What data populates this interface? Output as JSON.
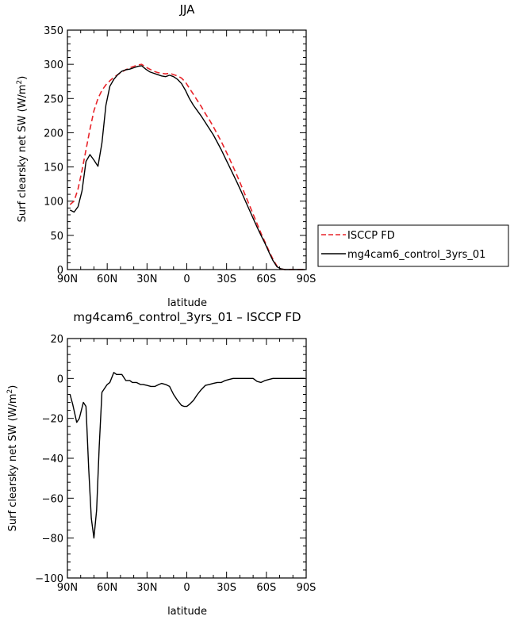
{
  "chart_data": [
    {
      "type": "line",
      "title": "JJA",
      "xlabel": "latitude",
      "ylabel": "Surf clearsky net SW (W/m",
      "ylabel_sup": "2",
      "ylabel_tail": ")",
      "xlim": [
        90,
        -90
      ],
      "ylim": [
        0,
        350
      ],
      "x_ticks": [
        90,
        60,
        30,
        0,
        -30,
        -60,
        -90
      ],
      "x_tick_labels": [
        "90N",
        "60N",
        "30N",
        "0",
        "30S",
        "60S",
        "90S"
      ],
      "y_ticks": [
        0,
        50,
        100,
        150,
        200,
        250,
        300,
        350
      ],
      "y_tick_labels": [
        "0",
        "50",
        "100",
        "150",
        "200",
        "250",
        "300",
        "350"
      ],
      "grid": false,
      "legend": "right",
      "series": [
        {
          "name": "ISCCP FD",
          "color": "#e8242a",
          "dash": "dashed",
          "x": [
            88,
            85,
            82,
            79,
            76,
            73,
            70,
            67,
            64,
            61,
            58,
            55,
            52,
            49,
            46,
            43,
            40,
            37,
            34,
            31,
            28,
            25,
            22,
            19,
            16,
            13,
            10,
            7,
            4,
            1,
            -2,
            -5,
            -8,
            -11,
            -14,
            -17,
            -20,
            -23,
            -26,
            -29,
            -32,
            -35,
            -38,
            -41,
            -44,
            -47,
            -50,
            -53,
            -56,
            -59,
            -62,
            -65,
            -68,
            -71,
            -74,
            -77,
            -80,
            -83,
            -86,
            -89
          ],
          "y": [
            95,
            100,
            118,
            145,
            175,
            205,
            232,
            250,
            262,
            270,
            276,
            281,
            285,
            289,
            292,
            295,
            297,
            299,
            300,
            296,
            293,
            290,
            288,
            287,
            286,
            287,
            285,
            283,
            280,
            274,
            265,
            256,
            247,
            238,
            228,
            219,
            209,
            198,
            187,
            175,
            163,
            150,
            137,
            123,
            109,
            95,
            81,
            67,
            53,
            40,
            27,
            15,
            5,
            1,
            0,
            0,
            0,
            0,
            0,
            0
          ]
        },
        {
          "name": "mg4cam6_control_3yrs_01",
          "color": "#000000",
          "dash": "solid",
          "x": [
            88,
            85,
            82,
            79,
            76,
            73,
            70,
            67,
            64,
            61,
            58,
            55,
            52,
            49,
            46,
            43,
            40,
            37,
            34,
            31,
            28,
            25,
            22,
            19,
            16,
            13,
            10,
            7,
            4,
            1,
            -2,
            -5,
            -8,
            -11,
            -14,
            -17,
            -20,
            -23,
            -26,
            -29,
            -32,
            -35,
            -38,
            -41,
            -44,
            -47,
            -50,
            -53,
            -56,
            -59,
            -62,
            -65,
            -68,
            -71,
            -74,
            -77,
            -80,
            -83,
            -86,
            -89
          ],
          "y": [
            87,
            84,
            92,
            115,
            158,
            168,
            160,
            151,
            185,
            240,
            268,
            278,
            285,
            290,
            292,
            293,
            295,
            297,
            298,
            293,
            289,
            287,
            285,
            283,
            282,
            284,
            282,
            278,
            272,
            262,
            250,
            240,
            232,
            224,
            215,
            206,
            197,
            186,
            175,
            163,
            151,
            139,
            127,
            114,
            101,
            88,
            75,
            62,
            50,
            38,
            25,
            13,
            4,
            1,
            0,
            0,
            0,
            0,
            0,
            0
          ]
        }
      ]
    },
    {
      "type": "line",
      "title": "mg4cam6_control_3yrs_01 – ISCCP FD",
      "xlabel": "latitude",
      "ylabel": "Surf clearsky net SW (W/m",
      "ylabel_sup": "2",
      "ylabel_tail": ")",
      "xlim": [
        90,
        -90
      ],
      "ylim": [
        -100,
        20
      ],
      "x_ticks": [
        90,
        60,
        30,
        0,
        -30,
        -60,
        -90
      ],
      "x_tick_labels": [
        "90N",
        "60N",
        "30N",
        "0",
        "30S",
        "60S",
        "90S"
      ],
      "y_ticks": [
        -100,
        -80,
        -60,
        -40,
        -20,
        0,
        20
      ],
      "y_tick_labels": [
        "−100",
        "−80",
        "−60",
        "−40",
        "−20",
        "0",
        "20"
      ],
      "grid": false,
      "series": [
        {
          "color": "#000000",
          "dash": "solid",
          "x": [
            88,
            86,
            83,
            81,
            78,
            76,
            74,
            72,
            70,
            68,
            66,
            64,
            62,
            60,
            58,
            55,
            53,
            51,
            49,
            46,
            43,
            41,
            38,
            35,
            33,
            30,
            27,
            24,
            21,
            19,
            16,
            13,
            10,
            7,
            4,
            2,
            0,
            -2,
            -5,
            -8,
            -11,
            -14,
            -17,
            -20,
            -23,
            -26,
            -29,
            -32,
            -35,
            -38,
            -41,
            -44,
            -47,
            -50,
            -53,
            -56,
            -59,
            -62,
            -65,
            -68,
            -71,
            -74,
            -77,
            -80,
            -83,
            -86,
            -89
          ],
          "y": [
            -8,
            -13,
            -22,
            -20,
            -12,
            -14,
            -45,
            -70,
            -80,
            -66,
            -34,
            -7,
            -5,
            -3,
            -2,
            3,
            2,
            2,
            2,
            -1,
            -1,
            -2,
            -2,
            -3,
            -3,
            -3.5,
            -4,
            -4,
            -3,
            -2.5,
            -3,
            -4,
            -8,
            -11,
            -13.5,
            -14,
            -14,
            -13,
            -11,
            -8,
            -5.5,
            -3.5,
            -3,
            -2.5,
            -2,
            -2,
            -1,
            -0.5,
            0,
            0,
            0,
            0,
            0,
            0,
            -1.5,
            -2,
            -1,
            -0.5,
            0,
            0,
            0,
            0,
            0,
            0,
            0,
            0,
            0
          ]
        }
      ]
    }
  ]
}
